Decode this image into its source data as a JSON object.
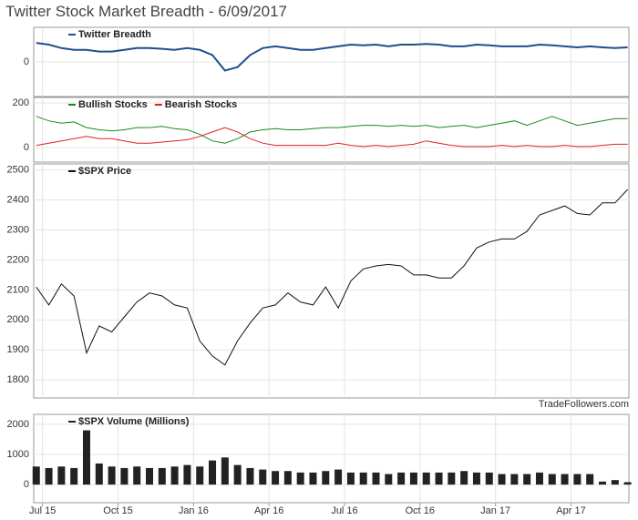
{
  "title": "Twitter Stock Market Breadth - 6/09/2017",
  "chart_data": [
    {
      "type": "line",
      "xlim": [
        -0.35,
        23.3
      ],
      "ylim": [
        -100,
        100
      ],
      "yticks": [
        0
      ],
      "x": [
        -0.25,
        0.25,
        0.75,
        1.25,
        1.75,
        2.25,
        2.75,
        3.25,
        3.75,
        4.25,
        4.75,
        5.25,
        5.75,
        6.25,
        6.75,
        7.25,
        7.75,
        8.25,
        8.75,
        9.25,
        9.75,
        10.25,
        10.75,
        11.25,
        11.75,
        12.25,
        12.75,
        13.25,
        13.75,
        14.25,
        14.75,
        15.25,
        15.75,
        16.25,
        16.75,
        17.25,
        17.75,
        18.25,
        18.75,
        19.25,
        19.75,
        20.25,
        20.75,
        21.25,
        21.75,
        22.25,
        22.75,
        23.25
      ],
      "series": [
        {
          "name": "Twitter Breadth",
          "color": "#1f4e8c",
          "values": [
            55,
            50,
            40,
            35,
            35,
            30,
            30,
            35,
            40,
            40,
            38,
            35,
            40,
            35,
            20,
            -25,
            -15,
            20,
            40,
            45,
            40,
            35,
            35,
            40,
            45,
            50,
            48,
            50,
            45,
            50,
            50,
            52,
            50,
            45,
            45,
            50,
            48,
            45,
            45,
            45,
            50,
            48,
            45,
            42,
            45,
            42,
            40,
            42
          ]
        }
      ]
    },
    {
      "type": "line",
      "xlim": [
        -0.35,
        23.3
      ],
      "ylim": [
        -65,
        225
      ],
      "yticks": [
        0,
        200
      ],
      "x": [
        -0.25,
        0.25,
        0.75,
        1.25,
        1.75,
        2.25,
        2.75,
        3.25,
        3.75,
        4.25,
        4.75,
        5.25,
        5.75,
        6.25,
        6.75,
        7.25,
        7.75,
        8.25,
        8.75,
        9.25,
        9.75,
        10.25,
        10.75,
        11.25,
        11.75,
        12.25,
        12.75,
        13.25,
        13.75,
        14.25,
        14.75,
        15.25,
        15.75,
        16.25,
        16.75,
        17.25,
        17.75,
        18.25,
        18.75,
        19.25,
        19.75,
        20.25,
        20.75,
        21.25,
        21.75,
        22.25,
        22.75,
        23.25
      ],
      "series": [
        {
          "name": "Bullish Stocks",
          "color": "#1a8a1a",
          "values": [
            140,
            120,
            110,
            115,
            90,
            80,
            75,
            80,
            90,
            90,
            95,
            85,
            80,
            60,
            30,
            20,
            40,
            70,
            80,
            85,
            80,
            80,
            85,
            90,
            90,
            95,
            100,
            100,
            95,
            100,
            95,
            100,
            90,
            95,
            100,
            90,
            100,
            110,
            120,
            100,
            120,
            140,
            120,
            100,
            110,
            120,
            130,
            130
          ]
        },
        {
          "name": "Bearish Stocks",
          "color": "#e02020",
          "values": [
            10,
            20,
            30,
            40,
            50,
            40,
            40,
            30,
            20,
            20,
            25,
            30,
            35,
            50,
            70,
            90,
            70,
            40,
            20,
            10,
            10,
            10,
            10,
            10,
            20,
            10,
            5,
            10,
            5,
            10,
            15,
            30,
            20,
            10,
            5,
            5,
            5,
            10,
            5,
            10,
            5,
            5,
            10,
            5,
            5,
            10,
            15,
            15
          ]
        }
      ]
    },
    {
      "type": "line",
      "xlim": [
        -0.35,
        23.3
      ],
      "ylim": [
        1740,
        2520
      ],
      "yticks": [
        1800,
        1900,
        2000,
        2100,
        2200,
        2300,
        2400,
        2500
      ],
      "annotation": "TradeFollowers.com",
      "x": [
        -0.25,
        0.25,
        0.75,
        1.25,
        1.75,
        2.25,
        2.75,
        3.25,
        3.75,
        4.25,
        4.75,
        5.25,
        5.75,
        6.25,
        6.75,
        7.25,
        7.75,
        8.25,
        8.75,
        9.25,
        9.75,
        10.25,
        10.75,
        11.25,
        11.75,
        12.25,
        12.75,
        13.25,
        13.75,
        14.25,
        14.75,
        15.25,
        15.75,
        16.25,
        16.75,
        17.25,
        17.75,
        18.25,
        18.75,
        19.25,
        19.75,
        20.25,
        20.75,
        21.25,
        21.75,
        22.25,
        22.75,
        23.25
      ],
      "series": [
        {
          "name": "$SPX Price",
          "color": "#111111",
          "values": [
            2110,
            2050,
            2120,
            2080,
            1890,
            1980,
            1960,
            2010,
            2060,
            2090,
            2080,
            2050,
            2040,
            1930,
            1880,
            1850,
            1930,
            1990,
            2040,
            2050,
            2090,
            2060,
            2050,
            2110,
            2040,
            2130,
            2170,
            2180,
            2185,
            2180,
            2150,
            2150,
            2140,
            2140,
            2180,
            2240,
            2260,
            2270,
            2270,
            2295,
            2350,
            2365,
            2380,
            2355,
            2350,
            2390,
            2390,
            2435
          ]
        }
      ]
    },
    {
      "type": "bar",
      "xlim": [
        -0.35,
        23.3
      ],
      "ylim": [
        -600,
        2330
      ],
      "yticks": [
        0,
        1000,
        2000
      ],
      "xticks": [
        {
          "value": 0,
          "label": "Jul 15"
        },
        {
          "value": 3,
          "label": "Oct 15"
        },
        {
          "value": 6,
          "label": "Jan 16"
        },
        {
          "value": 9,
          "label": "Apr 16"
        },
        {
          "value": 12,
          "label": "Jul 16"
        },
        {
          "value": 15,
          "label": "Oct 16"
        },
        {
          "value": 18,
          "label": "Jan 17"
        },
        {
          "value": 21,
          "label": "Apr 17"
        }
      ],
      "x": [
        -0.25,
        0.25,
        0.75,
        1.25,
        1.75,
        2.25,
        2.75,
        3.25,
        3.75,
        4.25,
        4.75,
        5.25,
        5.75,
        6.25,
        6.75,
        7.25,
        7.75,
        8.25,
        8.75,
        9.25,
        9.75,
        10.25,
        10.75,
        11.25,
        11.75,
        12.25,
        12.75,
        13.25,
        13.75,
        14.25,
        14.75,
        15.25,
        15.75,
        16.25,
        16.75,
        17.25,
        17.75,
        18.25,
        18.75,
        19.25,
        19.75,
        20.25,
        20.75,
        21.25,
        21.75,
        22.25,
        22.75,
        23.25
      ],
      "series": [
        {
          "name": "$SPX Volume (Millions)",
          "color": "#222222",
          "values": [
            600,
            550,
            600,
            550,
            1800,
            700,
            600,
            550,
            600,
            550,
            550,
            600,
            650,
            600,
            800,
            900,
            650,
            550,
            500,
            450,
            450,
            400,
            400,
            450,
            500,
            400,
            400,
            400,
            350,
            400,
            400,
            400,
            400,
            400,
            450,
            400,
            400,
            350,
            350,
            350,
            400,
            350,
            350,
            350,
            350,
            100,
            150,
            80
          ]
        }
      ]
    }
  ]
}
